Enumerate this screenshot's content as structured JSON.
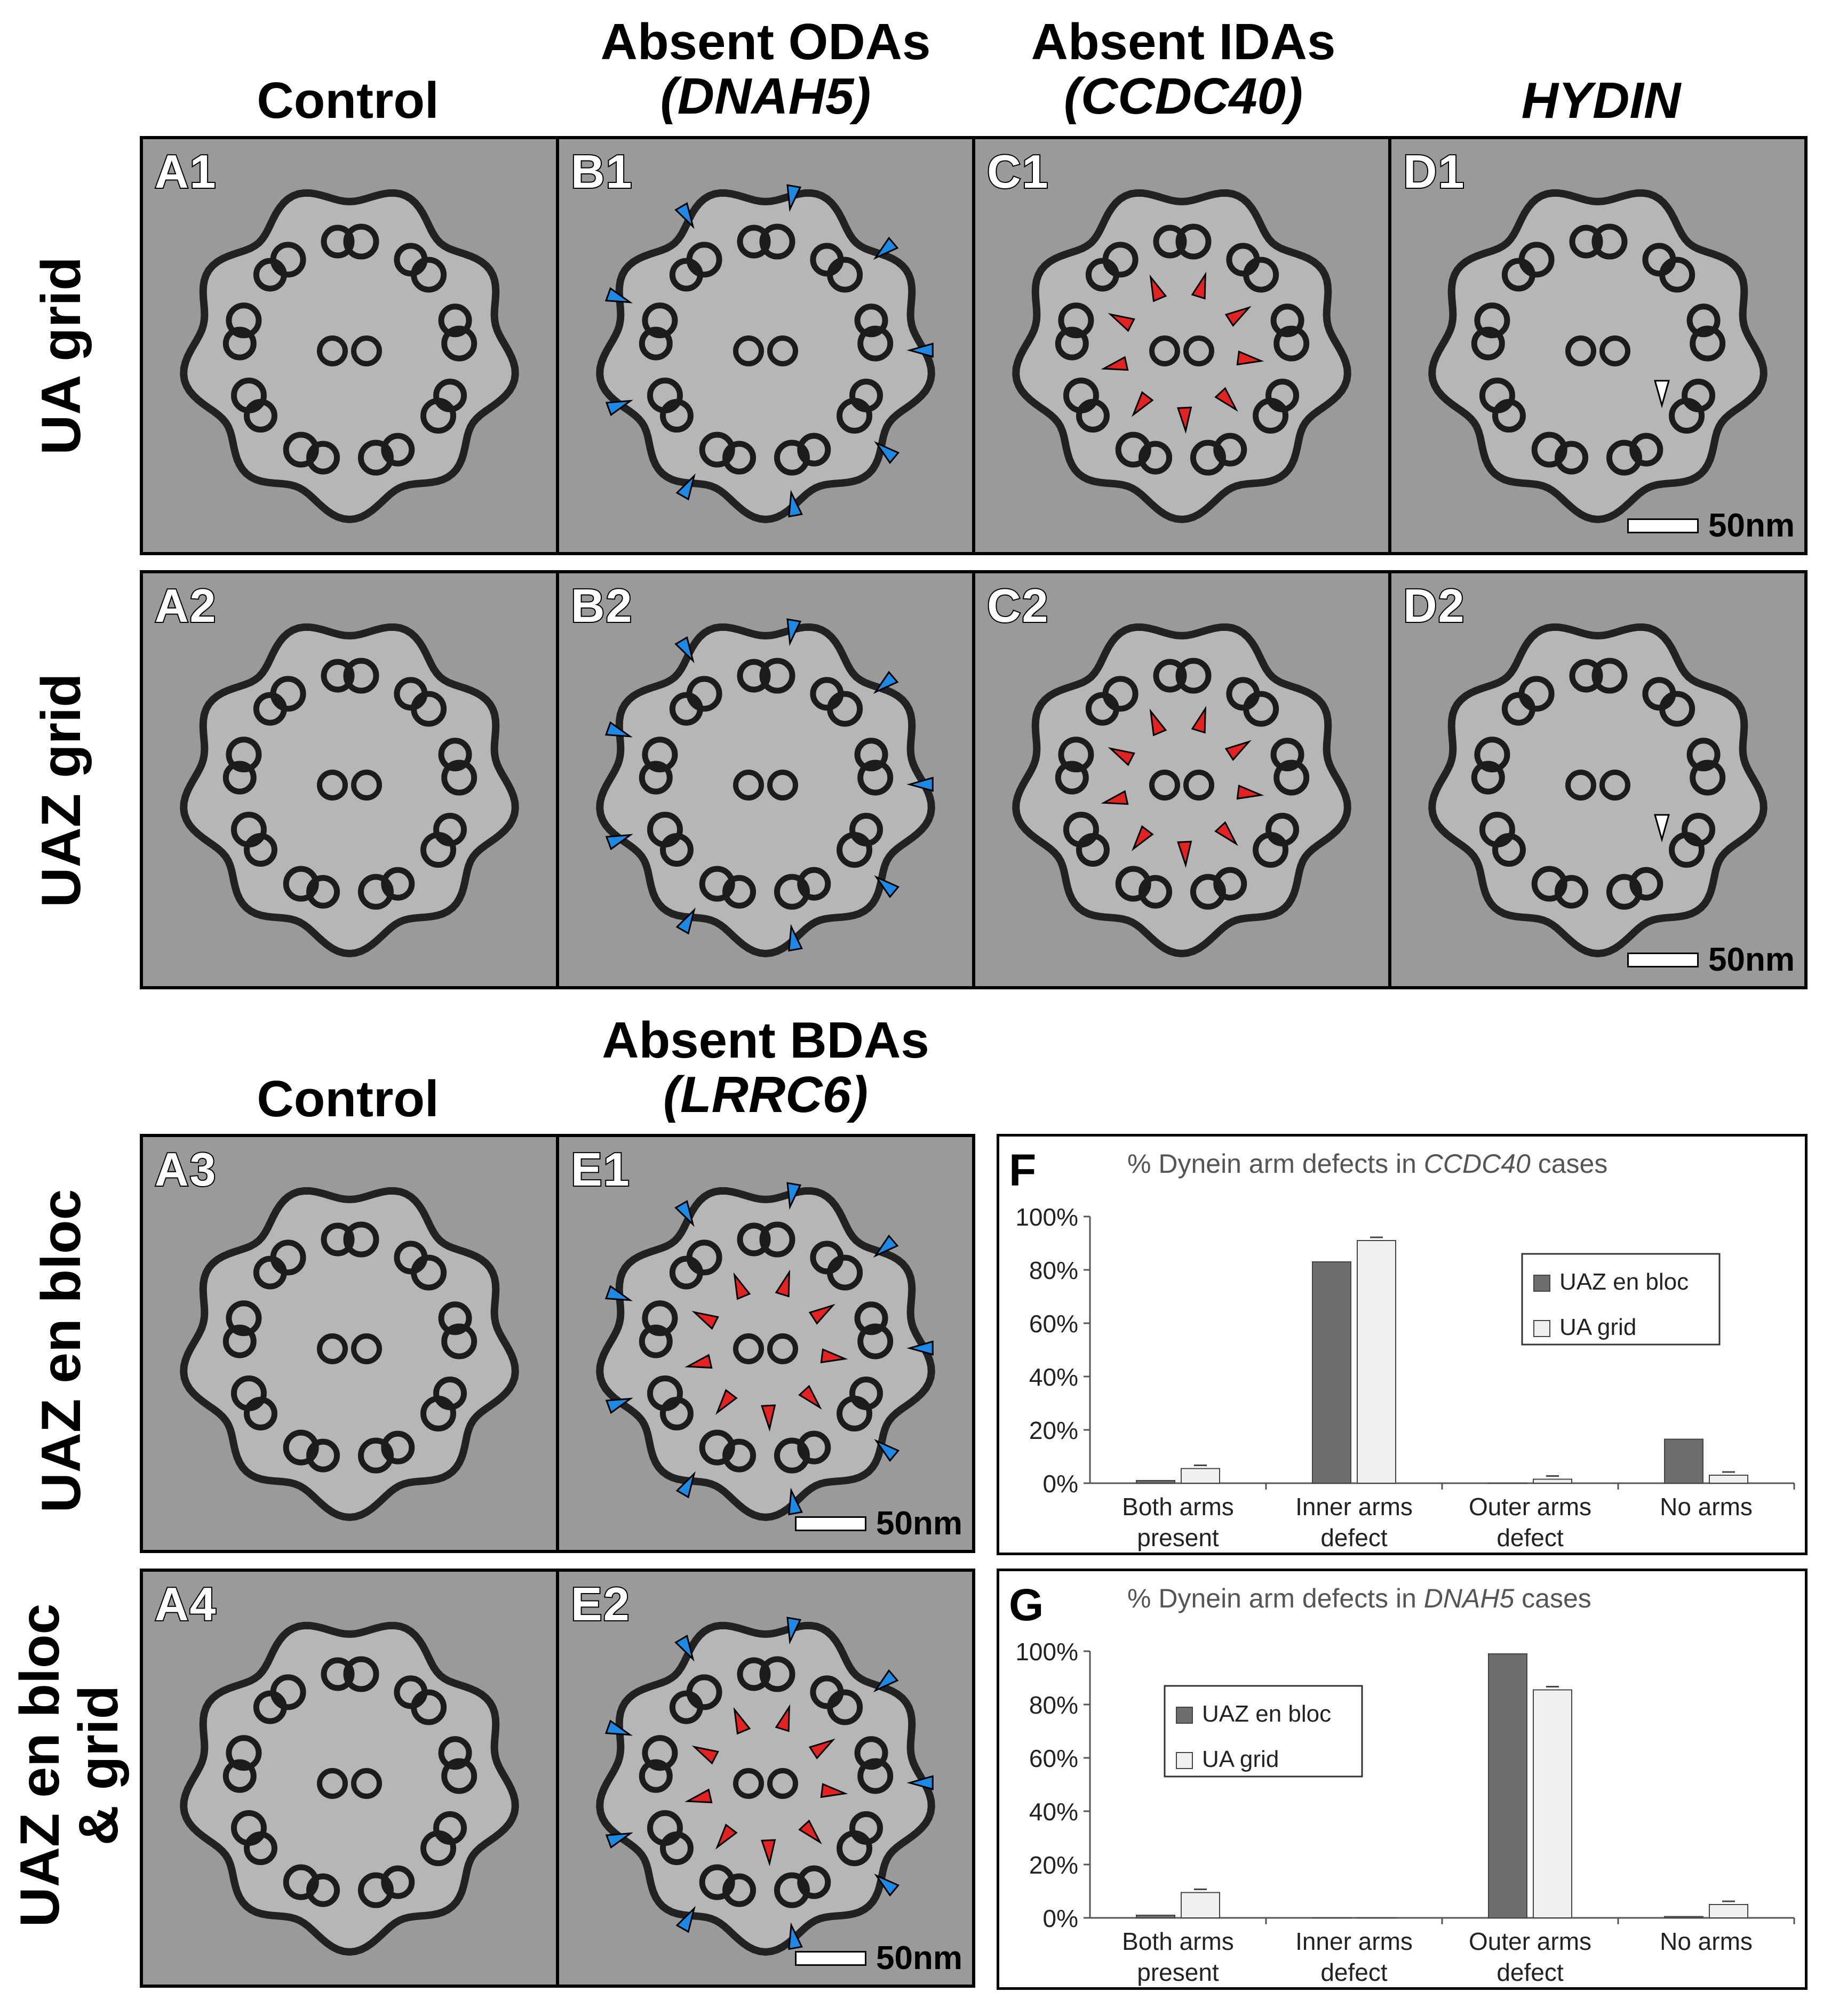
{
  "headers": {
    "control_top": "Control",
    "b_title": "Absent ODAs",
    "b_gene": "(DNAH5)",
    "c_title": "Absent IDAs",
    "c_gene": "(CCDC40)",
    "d_gene": "HYDIN",
    "control_bottom": "Control",
    "e_title": "Absent BDAs",
    "e_gene": "(LRRC6)"
  },
  "row_labels": {
    "row1": "UA grid",
    "row2": "UAZ grid",
    "row3": "UAZ en bloc",
    "row4_line1": "UAZ en bloc",
    "row4_line2": "& grid"
  },
  "panels": {
    "A1": "A1",
    "B1": "B1",
    "C1": "C1",
    "D1": "D1",
    "A2": "A2",
    "B2": "B2",
    "C2": "C2",
    "D2": "D2",
    "A3": "A3",
    "E1": "E1",
    "A4": "A4",
    "E2": "E2"
  },
  "scale_label": "50nm",
  "colors": {
    "blue_arrow": "#1e88e5",
    "red_arrow": "#e52222",
    "white_arrow": "#ffffff",
    "bar_dark": "#6e6e6e",
    "bar_light": "#f0f0f0"
  },
  "chart_data": [
    {
      "panel_label": "F",
      "type": "bar",
      "title_prefix": "% Dynein arm defects in ",
      "title_gene": "CCDC40",
      "title_suffix": " cases",
      "categories": [
        [
          "Both arms",
          "present"
        ],
        [
          "Inner arms",
          "defect"
        ],
        [
          "Outer arms",
          "defect"
        ],
        [
          "No arms",
          ""
        ]
      ],
      "series": [
        {
          "name": "UAZ en bloc",
          "values": [
            1,
            83,
            0,
            16.5
          ]
        },
        {
          "name": "UA grid",
          "values": [
            5.5,
            91,
            1.5,
            3
          ]
        }
      ],
      "y_ticks": [
        "0%",
        "20%",
        "40%",
        "60%",
        "80%",
        "100%"
      ],
      "ylim": [
        0,
        100
      ],
      "legend_position": "top-right"
    },
    {
      "panel_label": "G",
      "type": "bar",
      "title_prefix": "% Dynein arm defects in ",
      "title_gene": "DNAH5",
      "title_suffix": " cases",
      "categories": [
        [
          "Both arms",
          "present"
        ],
        [
          "Inner arms",
          "defect"
        ],
        [
          "Outer arms",
          "defect"
        ],
        [
          "No arms",
          ""
        ]
      ],
      "series": [
        {
          "name": "UAZ en bloc",
          "values": [
            1,
            0,
            99,
            0.5
          ]
        },
        {
          "name": "UA grid",
          "values": [
            9.5,
            0,
            85.5,
            5
          ]
        }
      ],
      "y_ticks": [
        "0%",
        "20%",
        "40%",
        "60%",
        "80%",
        "100%"
      ],
      "ylim": [
        0,
        100
      ],
      "legend_position": "top-left"
    }
  ]
}
